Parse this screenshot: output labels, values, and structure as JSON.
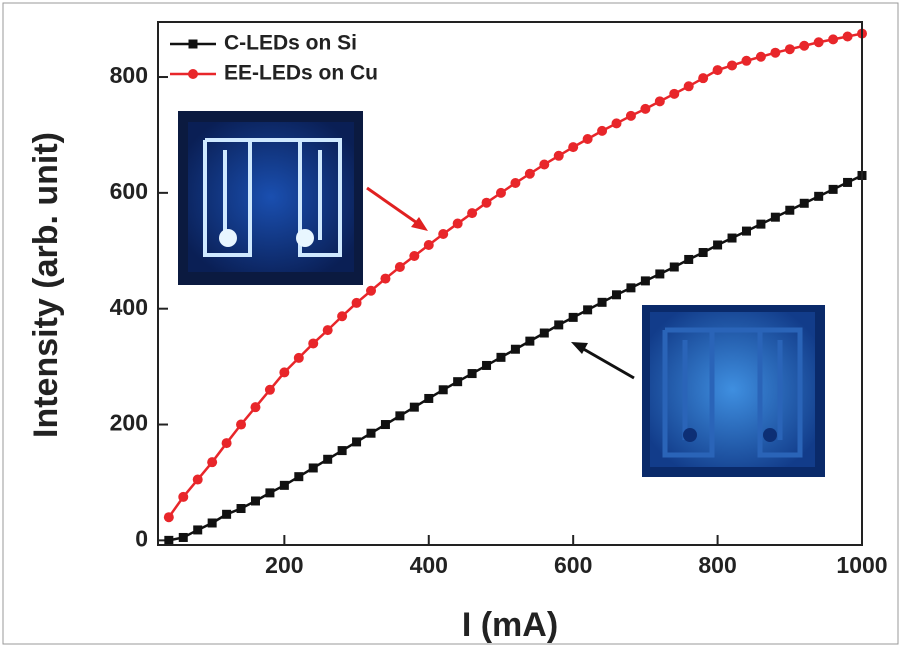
{
  "chart_data": {
    "type": "line",
    "x_label": "I (mA)",
    "y_label": "Intensity (arb. unit)",
    "xlim": [
      25,
      1000
    ],
    "ylim": [
      -8,
      895
    ],
    "xticks": [
      200,
      400,
      600,
      800,
      1000
    ],
    "yticks": [
      0,
      200,
      400,
      600,
      800
    ],
    "legend": "top-left",
    "x": [
      40,
      60,
      80,
      100,
      120,
      140,
      160,
      180,
      200,
      220,
      240,
      260,
      280,
      300,
      320,
      340,
      360,
      380,
      400,
      420,
      440,
      460,
      480,
      500,
      520,
      540,
      560,
      580,
      600,
      620,
      640,
      660,
      680,
      700,
      720,
      740,
      760,
      780,
      800,
      820,
      840,
      860,
      880,
      900,
      920,
      940,
      960,
      980,
      1000
    ],
    "series": [
      {
        "name": "C-LEDs on Si",
        "color": "#111111",
        "marker": "square",
        "values": [
          0,
          5,
          18,
          30,
          45,
          55,
          68,
          82,
          95,
          110,
          125,
          140,
          155,
          170,
          185,
          200,
          215,
          230,
          245,
          260,
          274,
          288,
          302,
          316,
          330,
          344,
          358,
          372,
          385,
          398,
          411,
          424,
          436,
          448,
          460,
          472,
          485,
          497,
          510,
          522,
          534,
          546,
          558,
          570,
          582,
          594,
          606,
          618,
          630
        ]
      },
      {
        "name": "EE-LEDs on Cu",
        "color": "#e8262a",
        "marker": "circle",
        "values": [
          40,
          75,
          105,
          135,
          168,
          200,
          230,
          260,
          290,
          315,
          340,
          363,
          387,
          410,
          431,
          452,
          472,
          491,
          510,
          529,
          547,
          565,
          583,
          600,
          617,
          633,
          649,
          664,
          679,
          693,
          707,
          720,
          733,
          745,
          758,
          771,
          784,
          798,
          812,
          820,
          828,
          835,
          842,
          848,
          854,
          860,
          865,
          870,
          875
        ]
      }
    ]
  }
}
